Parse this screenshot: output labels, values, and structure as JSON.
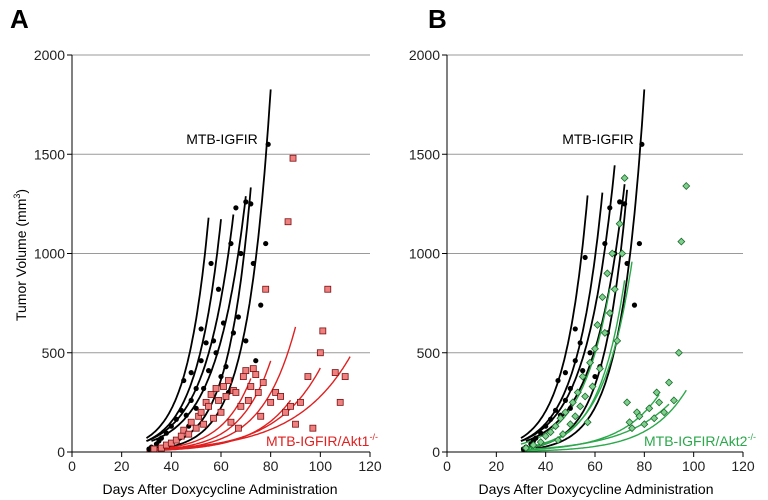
{
  "figure": {
    "ylabel_main": "Tumor Volume (mm",
    "ylabel_sup": "3",
    "ylabel_close": ")"
  },
  "chart_data": [
    {
      "type": "scatter",
      "panel": "A",
      "xlabel": "Days After Doxycycline Administration",
      "xlim": [
        0,
        120
      ],
      "ylim": [
        0,
        2000
      ],
      "xticks": [
        "0",
        "20",
        "40",
        "60",
        "80",
        "100",
        "120"
      ],
      "yticks": [
        "0",
        "500",
        "1000",
        "1500",
        "2000"
      ],
      "grid": "horizontal",
      "series": [
        {
          "name": "MTB-IGFIR",
          "color": "#000000",
          "marker": "circle",
          "label_text": "MTB-IGFIR",
          "label_sup": "",
          "curves": [
            {
              "start": 30,
              "end": 55,
              "b": 0.113,
              "v0": 70
            },
            {
              "start": 30,
              "end": 60,
              "b": 0.102,
              "v0": 55
            },
            {
              "start": 30,
              "end": 65,
              "b": 0.088,
              "v0": 55
            },
            {
              "start": 32,
              "end": 70,
              "b": 0.083,
              "v0": 55
            },
            {
              "start": 34,
              "end": 72,
              "b": 0.108,
              "v0": 22
            },
            {
              "start": 36,
              "end": 80,
              "b": 0.105,
              "v0": 18
            }
          ],
          "points": [
            [
              31,
              15
            ],
            [
              32,
              25
            ],
            [
              34,
              40
            ],
            [
              35,
              55
            ],
            [
              36,
              70
            ],
            [
              38,
              95
            ],
            [
              40,
              130
            ],
            [
              42,
              165
            ],
            [
              44,
              210
            ],
            [
              45,
              360
            ],
            [
              46,
              185
            ],
            [
              47,
              130
            ],
            [
              48,
              400
            ],
            [
              48,
              260
            ],
            [
              50,
              220
            ],
            [
              50,
              320
            ],
            [
              52,
              620
            ],
            [
              52,
              460
            ],
            [
              53,
              320
            ],
            [
              54,
              550
            ],
            [
              55,
              410
            ],
            [
              56,
              950
            ],
            [
              57,
              560
            ],
            [
              58,
              500
            ],
            [
              59,
              820
            ],
            [
              60,
              380
            ],
            [
              61,
              650
            ],
            [
              62,
              430
            ],
            [
              63,
              300
            ],
            [
              64,
              1050
            ],
            [
              65,
              600
            ],
            [
              66,
              1230
            ],
            [
              67,
              680
            ],
            [
              68,
              1000
            ],
            [
              70,
              1260
            ],
            [
              70,
              560
            ],
            [
              72,
              1250
            ],
            [
              73,
              950
            ],
            [
              74,
              460
            ],
            [
              76,
              740
            ],
            [
              78,
              1050
            ],
            [
              79,
              1550
            ]
          ]
        },
        {
          "name": "MTB-IGFIR/Akt1-/-",
          "color": "#e02020",
          "marker": "square",
          "label_text": "MTB-IGFIR/Akt1",
          "label_sup": "-/-",
          "curves": [
            {
              "start": 30,
              "end": 72,
              "b": 0.086,
              "v0": 10
            },
            {
              "start": 30,
              "end": 80,
              "b": 0.081,
              "v0": 8
            },
            {
              "start": 30,
              "end": 90,
              "b": 0.075,
              "v0": 7
            },
            {
              "start": 30,
              "end": 88,
              "b": 0.065,
              "v0": 6
            },
            {
              "start": 30,
              "end": 100,
              "b": 0.055,
              "v0": 9
            },
            {
              "start": 30,
              "end": 112,
              "b": 0.045,
              "v0": 12
            }
          ],
          "points": [
            [
              33,
              15
            ],
            [
              36,
              20
            ],
            [
              38,
              35
            ],
            [
              40,
              45
            ],
            [
              42,
              60
            ],
            [
              44,
              80
            ],
            [
              45,
              110
            ],
            [
              47,
              90
            ],
            [
              48,
              150
            ],
            [
              50,
              120
            ],
            [
              51,
              180
            ],
            [
              52,
              200
            ],
            [
              53,
              140
            ],
            [
              54,
              250
            ],
            [
              55,
              230
            ],
            [
              56,
              290
            ],
            [
              57,
              170
            ],
            [
              58,
              320
            ],
            [
              59,
              260
            ],
            [
              60,
              200
            ],
            [
              61,
              330
            ],
            [
              62,
              280
            ],
            [
              63,
              360
            ],
            [
              64,
              150
            ],
            [
              65,
              310
            ],
            [
              66,
              300
            ],
            [
              67,
              120
            ],
            [
              68,
              230
            ],
            [
              69,
              380
            ],
            [
              70,
              410
            ],
            [
              71,
              260
            ],
            [
              72,
              330
            ],
            [
              73,
              420
            ],
            [
              74,
              390
            ],
            [
              75,
              300
            ],
            [
              76,
              180
            ],
            [
              77,
              350
            ],
            [
              78,
              820
            ],
            [
              80,
              250
            ],
            [
              82,
              300
            ],
            [
              84,
              280
            ],
            [
              86,
              200
            ],
            [
              87,
              1160
            ],
            [
              88,
              230
            ],
            [
              89,
              1480
            ],
            [
              90,
              140
            ],
            [
              92,
              250
            ],
            [
              95,
              380
            ],
            [
              97,
              120
            ],
            [
              100,
              500
            ],
            [
              101,
              610
            ],
            [
              103,
              820
            ],
            [
              106,
              400
            ],
            [
              108,
              250
            ],
            [
              110,
              380
            ]
          ]
        }
      ]
    },
    {
      "type": "scatter",
      "panel": "B",
      "xlabel": "Days After Doxycycline Administration",
      "xlim": [
        0,
        120
      ],
      "ylim": [
        0,
        2000
      ],
      "xticks": [
        "0",
        "20",
        "40",
        "60",
        "80",
        "100",
        "120"
      ],
      "yticks": [
        "0",
        "500",
        "1000",
        "1500",
        "2000"
      ],
      "grid": "horizontal",
      "series": [
        {
          "name": "MTB-IGFIR",
          "color": "#000000",
          "marker": "circle",
          "label_text": "MTB-IGFIR",
          "label_sup": "",
          "curves": [
            {
              "start": 30,
              "end": 57,
              "b": 0.108,
              "v0": 70
            },
            {
              "start": 30,
              "end": 63,
              "b": 0.096,
              "v0": 55
            },
            {
              "start": 30,
              "end": 68,
              "b": 0.086,
              "v0": 55
            },
            {
              "start": 32,
              "end": 72,
              "b": 0.08,
              "v0": 55
            },
            {
              "start": 34,
              "end": 73,
              "b": 0.105,
              "v0": 22
            },
            {
              "start": 36,
              "end": 80,
              "b": 0.105,
              "v0": 18
            }
          ],
          "points": [
            [
              31,
              15
            ],
            [
              32,
              25
            ],
            [
              34,
              40
            ],
            [
              35,
              55
            ],
            [
              36,
              70
            ],
            [
              38,
              95
            ],
            [
              40,
              130
            ],
            [
              42,
              165
            ],
            [
              44,
              210
            ],
            [
              45,
              360
            ],
            [
              46,
              185
            ],
            [
              48,
              400
            ],
            [
              48,
              260
            ],
            [
              50,
              220
            ],
            [
              50,
              320
            ],
            [
              52,
              620
            ],
            [
              52,
              460
            ],
            [
              54,
              550
            ],
            [
              55,
              410
            ],
            [
              56,
              980
            ],
            [
              58,
              500
            ],
            [
              60,
              380
            ],
            [
              62,
              430
            ],
            [
              64,
              1050
            ],
            [
              65,
              600
            ],
            [
              66,
              1230
            ],
            [
              68,
              1000
            ],
            [
              70,
              1260
            ],
            [
              72,
              1250
            ],
            [
              73,
              950
            ],
            [
              76,
              740
            ],
            [
              78,
              1050
            ],
            [
              79,
              1550
            ]
          ]
        },
        {
          "name": "MTB-IGFIR/Akt2-/-",
          "color": "#2aa84a",
          "marker": "diamond",
          "label_text": "MTB-IGFIR/Akt2",
          "label_sup": "-/-",
          "curves": [
            {
              "start": 30,
              "end": 72,
              "b": 0.095,
              "v0": 16
            },
            {
              "start": 30,
              "end": 66,
              "b": 0.084,
              "v0": 40
            },
            {
              "start": 30,
              "end": 75,
              "b": 0.086,
              "v0": 20
            },
            {
              "start": 30,
              "end": 97,
              "b": 0.065,
              "v0": 4
            },
            {
              "start": 30,
              "end": 86,
              "b": 0.062,
              "v0": 9
            },
            {
              "start": 30,
              "end": 90,
              "b": 0.05,
              "v0": 12
            }
          ],
          "points": [
            [
              32,
              20
            ],
            [
              35,
              35
            ],
            [
              38,
              50
            ],
            [
              40,
              80
            ],
            [
              42,
              100
            ],
            [
              44,
              130
            ],
            [
              45,
              60
            ],
            [
              46,
              170
            ],
            [
              47,
              90
            ],
            [
              48,
              200
            ],
            [
              50,
              140
            ],
            [
              51,
              250
            ],
            [
              52,
              180
            ],
            [
              53,
              300
            ],
            [
              54,
              230
            ],
            [
              55,
              380
            ],
            [
              56,
              280
            ],
            [
              57,
              150
            ],
            [
              58,
              450
            ],
            [
              59,
              330
            ],
            [
              60,
              520
            ],
            [
              61,
              640
            ],
            [
              62,
              420
            ],
            [
              63,
              780
            ],
            [
              64,
              600
            ],
            [
              65,
              900
            ],
            [
              66,
              700
            ],
            [
              67,
              1000
            ],
            [
              68,
              820
            ],
            [
              69,
              560
            ],
            [
              70,
              1150
            ],
            [
              71,
              1000
            ],
            [
              72,
              1380
            ],
            [
              73,
              250
            ],
            [
              74,
              150
            ],
            [
              75,
              120
            ],
            [
              77,
              200
            ],
            [
              78,
              180
            ],
            [
              80,
              140
            ],
            [
              82,
              220
            ],
            [
              84,
              170
            ],
            [
              85,
              300
            ],
            [
              86,
              250
            ],
            [
              88,
              200
            ],
            [
              90,
              350
            ],
            [
              92,
              260
            ],
            [
              94,
              500
            ],
            [
              95,
              1060
            ],
            [
              97,
              1340
            ]
          ]
        }
      ]
    }
  ]
}
